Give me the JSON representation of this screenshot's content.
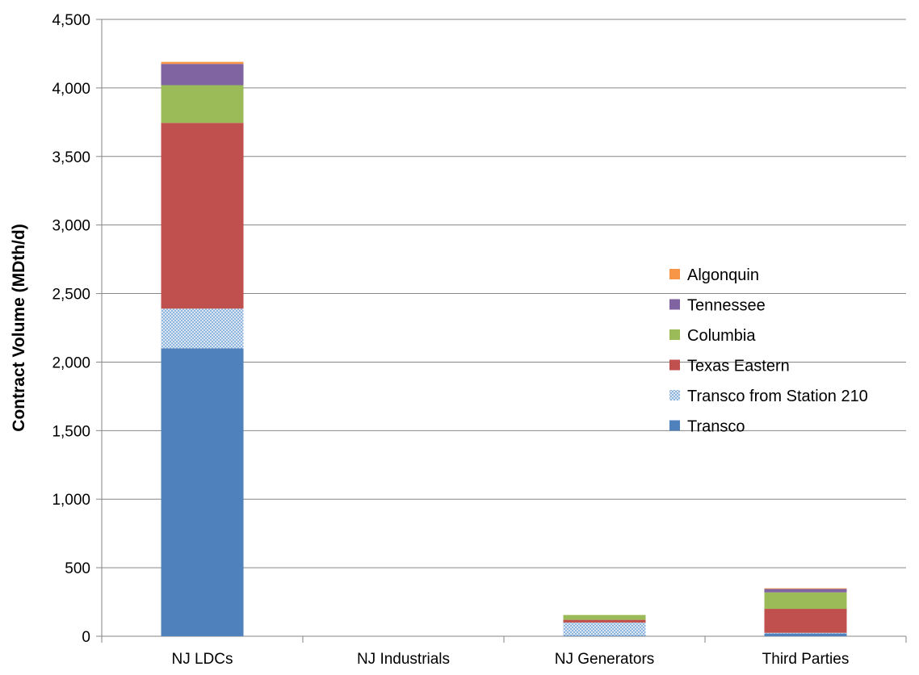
{
  "chart_data": {
    "type": "bar",
    "stacked": true,
    "title": "",
    "xlabel": "",
    "ylabel": "Contract Volume (MDth/d)",
    "ylim": [
      0,
      4500
    ],
    "yticks": [
      0,
      500,
      1000,
      1500,
      2000,
      2500,
      3000,
      3500,
      4000,
      4500
    ],
    "ytick_labels": [
      "0",
      "500",
      "1,000",
      "1,500",
      "2,000",
      "2,500",
      "3,000",
      "3,500",
      "4,000",
      "4,500"
    ],
    "grid": true,
    "legend_position": "right",
    "categories": [
      "NJ LDCs",
      "NJ Industrials",
      "NJ Generators",
      "Third Parties"
    ],
    "series": [
      {
        "name": "Transco",
        "color": "#4F81BD",
        "pattern": "solid",
        "values": [
          2100,
          0,
          5,
          20
        ]
      },
      {
        "name": "Transco from Station 210",
        "color": "#9DC3E6",
        "pattern": "checker",
        "values": [
          290,
          0,
          95,
          5
        ]
      },
      {
        "name": "Texas Eastern",
        "color": "#C0504D",
        "pattern": "solid",
        "values": [
          1355,
          0,
          20,
          175
        ]
      },
      {
        "name": "Columbia",
        "color": "#9BBB59",
        "pattern": "solid",
        "values": [
          275,
          0,
          35,
          120
        ]
      },
      {
        "name": "Tennessee",
        "color": "#8064A2",
        "pattern": "solid",
        "values": [
          155,
          0,
          0,
          25
        ]
      },
      {
        "name": "Algonquin",
        "color": "#F79646",
        "pattern": "solid",
        "values": [
          15,
          0,
          0,
          5
        ]
      }
    ]
  }
}
